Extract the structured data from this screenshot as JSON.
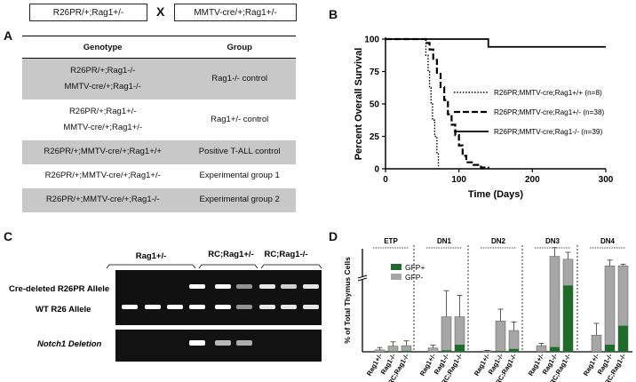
{
  "panels": {
    "a": "A",
    "b": "B",
    "c": "C",
    "d": "D"
  },
  "cross": {
    "left": "R26PR/+;Rag1+/-",
    "symbol": "X",
    "right": "MMTV-cre/+;Rag1+/-"
  },
  "genotype_table": {
    "headers": [
      "Genotype",
      "Group"
    ],
    "rows": [
      {
        "genotype": [
          "R26PR/+;Rag1-/-",
          "MMTV-cre/+;Rag1-/-"
        ],
        "group": "Rag1-/- control",
        "shaded": true
      },
      {
        "genotype": [
          "R26PR/+;Rag1+/-",
          "MMTV-cre/+;Rag1+/-"
        ],
        "group": "Rag1+/- control",
        "shaded": false
      },
      {
        "genotype": [
          "R26PR/+;MMTV-cre/+;Rag1+/+"
        ],
        "group": "Positive T-ALL control",
        "shaded": true
      },
      {
        "genotype": [
          "R26PR/+;MMTV-cre/+;Rag1+/-"
        ],
        "group": "Experimental group 1",
        "shaded": false
      },
      {
        "genotype": [
          "R26PR/+;MMTV-cre/+;Rag1-/-"
        ],
        "group": "Experimental group 2",
        "shaded": true
      }
    ]
  },
  "gel": {
    "groups": [
      "Rag1+/-",
      "RC;Rag1+/-",
      "RC;Rag1-/-"
    ],
    "bands_top": [
      "Cre-deleted R26PR Allele",
      "WT R26 Allele"
    ],
    "band_bottom": "Notch1 Deletion"
  },
  "chart_data": [
    {
      "type": "line",
      "title": "",
      "xlabel": "Time (Days)",
      "ylabel": "Percent Overall Survival",
      "xlim": [
        0,
        300
      ],
      "ylim": [
        0,
        100
      ],
      "xticks": [
        0,
        100,
        200,
        300
      ],
      "yticks": [
        0,
        25,
        50,
        75,
        100
      ],
      "legend_position": "right",
      "series": [
        {
          "name": "R26PR;MMTV-cre;Rag1+/+ (n=8)",
          "style": "dotted",
          "x": [
            0,
            52,
            55,
            58,
            60,
            62,
            64,
            67,
            70,
            72
          ],
          "y": [
            100,
            100,
            87.5,
            75,
            62.5,
            50,
            37.5,
            25,
            12.5,
            0
          ]
        },
        {
          "name": "R26PR;MMTV-cre;Rag1+/- (n=38)",
          "style": "dashed",
          "x": [
            0,
            50,
            55,
            60,
            65,
            70,
            75,
            80,
            85,
            90,
            95,
            100,
            105,
            110,
            120,
            130,
            140
          ],
          "y": [
            100,
            100,
            97,
            92,
            84,
            74,
            63,
            53,
            42,
            34,
            26,
            18,
            10,
            5,
            3,
            1,
            0
          ]
        },
        {
          "name": "R26PR;MMTV-cre;Rag1-/- (n=39)",
          "style": "solid",
          "x": [
            0,
            140,
            140,
            300
          ],
          "y": [
            100,
            100,
            94,
            94
          ]
        }
      ]
    },
    {
      "type": "bar",
      "title": "",
      "xlabel": "",
      "ylabel": "% of Total Thymus Cells",
      "groups": [
        "ETP",
        "DN1",
        "DN2",
        "DN3",
        "DN4"
      ],
      "categories": [
        "Rag1+/-",
        "Rag1-/-",
        "RC;Rag1-/-"
      ],
      "legend": [
        "GFP+",
        "GFP-"
      ],
      "colors": {
        "gfp_pos": "#1e6b2a",
        "gfp_neg": "#a6a6a6"
      },
      "series": [
        {
          "name": "GFP+",
          "values": [
            [
              0,
              0.1,
              0.2
            ],
            [
              0,
              0.3,
              1.5
            ],
            [
              0,
              0.2,
              0.6
            ],
            [
              0.1,
              1.0,
              14.0
            ],
            [
              0,
              1.5,
              5.5
            ]
          ]
        },
        {
          "name": "GFP-",
          "values": [
            [
              0.4,
              1.1,
              1.1
            ],
            [
              0.8,
              7.1,
              5.9
            ],
            [
              0.2,
              6.3,
              3.9
            ],
            [
              1.2,
              52.0,
              34.0
            ],
            [
              3.5,
              35.0,
              31.0
            ]
          ]
        }
      ],
      "errors": [
        [
          0.5,
          0.9,
          1.0
        ],
        [
          0.6,
          5.5,
          4.5
        ],
        [
          0.1,
          2.5,
          1.8
        ],
        [
          0.5,
          15.0,
          12.0
        ],
        [
          2.5,
          10.0,
          3.0
        ]
      ]
    }
  ]
}
